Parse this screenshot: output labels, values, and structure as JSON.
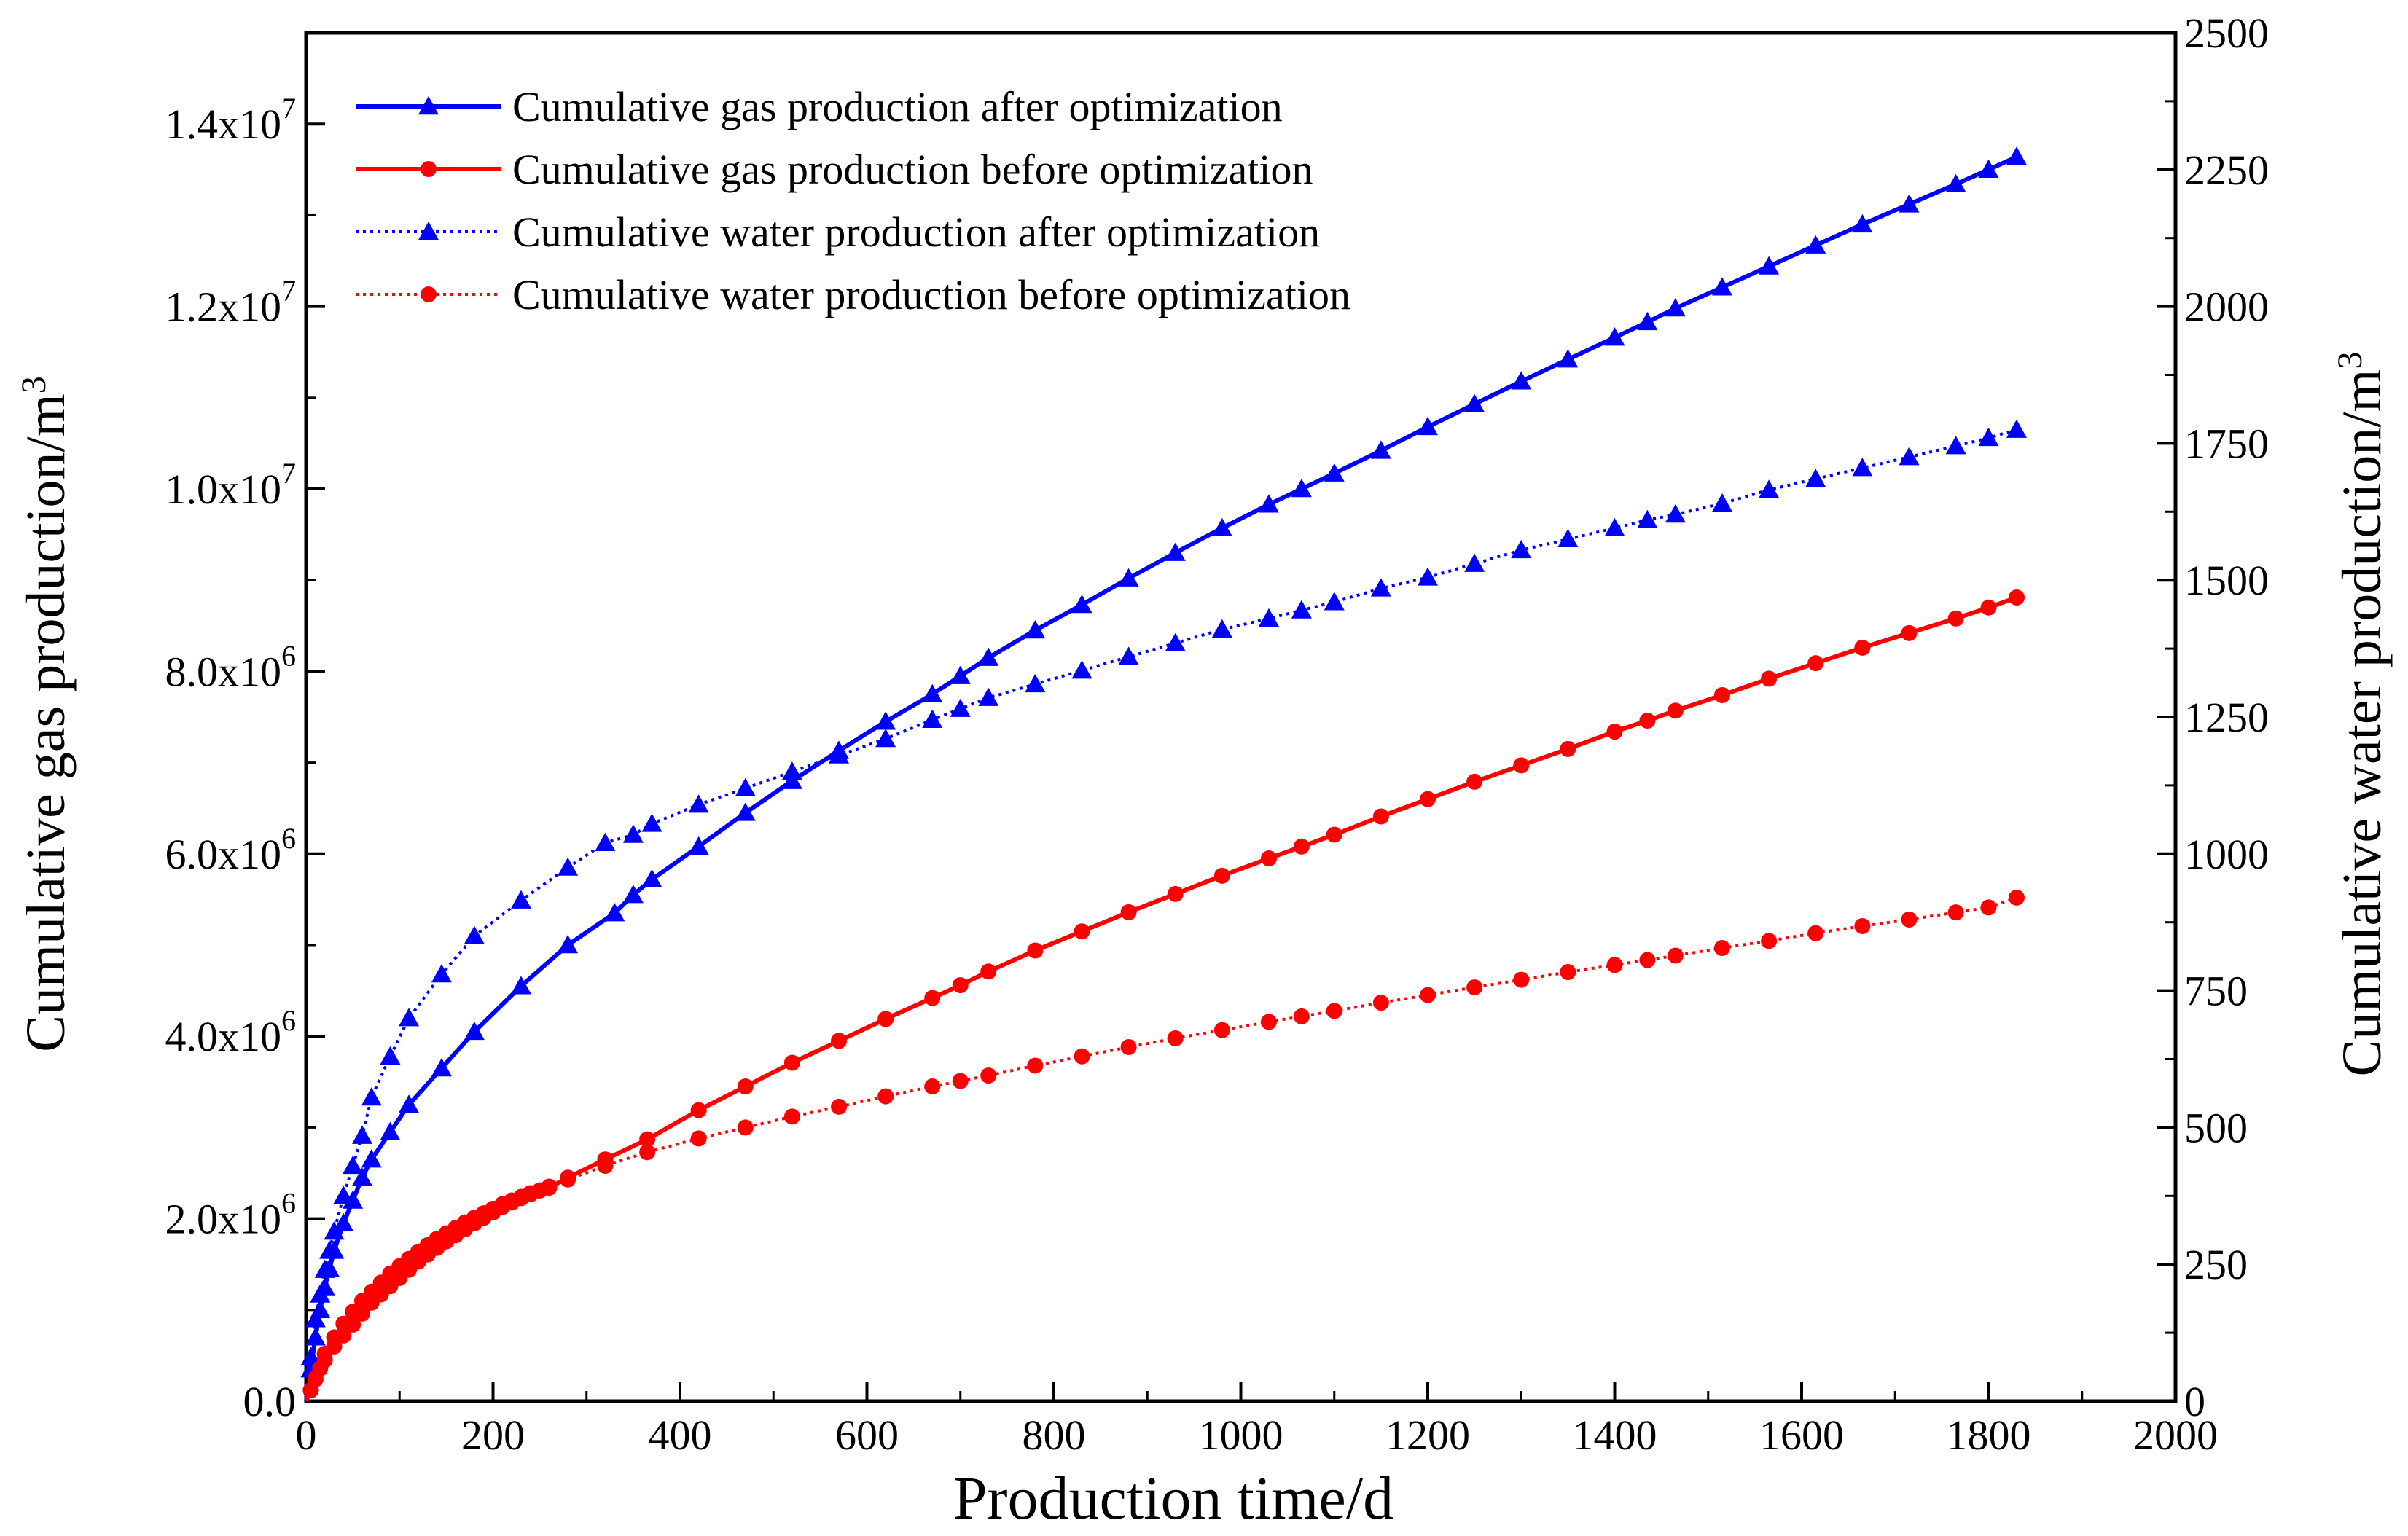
{
  "chart_data": {
    "type": "line",
    "title": "",
    "xlabel": "Production time/d",
    "ylabel_left": "Cumulative gas production/m",
    "ylabel_left_superscript": "3",
    "ylabel_right": "Cumulative water production/m",
    "ylabel_right_superscript": "3",
    "xlim": [
      0,
      2000
    ],
    "ylim_left": [
      0,
      15000000
    ],
    "ylim_right": [
      0,
      2500
    ],
    "x_ticks": [
      "0",
      "200",
      "400",
      "600",
      "800",
      "1000",
      "1200",
      "1400",
      "1600",
      "1800",
      "2000"
    ],
    "left_ticks": [
      {
        "mantissa": "0.0",
        "exp": ""
      },
      {
        "mantissa": "2.0x10",
        "exp": "6"
      },
      {
        "mantissa": "4.0x10",
        "exp": "6"
      },
      {
        "mantissa": "6.0x10",
        "exp": "6"
      },
      {
        "mantissa": "8.0x10",
        "exp": "6"
      },
      {
        "mantissa": "1.0x10",
        "exp": "7"
      },
      {
        "mantissa": "1.2x10",
        "exp": "7"
      },
      {
        "mantissa": "1.4x10",
        "exp": "7"
      }
    ],
    "right_ticks": [
      "0",
      "250",
      "500",
      "750",
      "1000",
      "1250",
      "1500",
      "1750",
      "2000",
      "2250",
      "2500"
    ],
    "grid": false,
    "legend_position": "top-left",
    "series": [
      {
        "name": "Cumulative gas production after optimization",
        "axis": "left",
        "color": "#0000ff",
        "marker": "triangle",
        "line": "solid",
        "x": [
          0,
          5,
          10,
          15,
          20,
          25,
          30,
          40,
          50,
          60,
          70,
          90,
          110,
          145,
          180,
          230,
          280,
          330,
          350,
          370,
          420,
          470,
          520,
          570,
          620,
          670,
          700,
          730,
          780,
          830,
          880,
          930,
          980,
          1030,
          1065,
          1100,
          1150,
          1200,
          1250,
          1300,
          1350,
          1400,
          1435,
          1465,
          1515,
          1565,
          1615,
          1665,
          1715,
          1765,
          1800,
          1830
        ],
        "y": [
          0,
          350000,
          700000,
          1000000,
          1250000,
          1450000,
          1650000,
          1950000,
          2200000,
          2450000,
          2650000,
          2950000,
          3250000,
          3650000,
          4050000,
          4550000,
          5000000,
          5350000,
          5550000,
          5720000,
          6080000,
          6450000,
          6800000,
          7130000,
          7450000,
          7750000,
          7950000,
          8150000,
          8450000,
          8730000,
          9020000,
          9300000,
          9570000,
          9830000,
          10000000,
          10170000,
          10420000,
          10680000,
          10930000,
          11180000,
          11420000,
          11660000,
          11830000,
          11980000,
          12210000,
          12440000,
          12670000,
          12900000,
          13120000,
          13340000,
          13500000,
          13640000
        ]
      },
      {
        "name": "Cumulative gas production before optimization",
        "axis": "left",
        "color": "#ff0000",
        "marker": "circle",
        "line": "solid",
        "x": [
          0,
          5,
          10,
          15,
          20,
          30,
          40,
          50,
          60,
          70,
          80,
          90,
          100,
          110,
          120,
          130,
          140,
          150,
          160,
          170,
          180,
          190,
          200,
          210,
          220,
          230,
          240,
          250,
          260,
          280,
          320,
          365,
          420,
          470,
          520,
          570,
          620,
          670,
          700,
          730,
          780,
          830,
          880,
          930,
          980,
          1030,
          1065,
          1100,
          1150,
          1200,
          1250,
          1300,
          1350,
          1400,
          1435,
          1465,
          1515,
          1565,
          1615,
          1665,
          1715,
          1765,
          1800,
          1830
        ],
        "y": [
          0,
          120000,
          250000,
          400000,
          520000,
          700000,
          850000,
          980000,
          1100000,
          1200000,
          1300000,
          1400000,
          1480000,
          1560000,
          1640000,
          1710000,
          1780000,
          1840000,
          1900000,
          1960000,
          2010000,
          2060000,
          2110000,
          2160000,
          2200000,
          2240000,
          2280000,
          2310000,
          2340000,
          2450000,
          2650000,
          2870000,
          3190000,
          3450000,
          3710000,
          3950000,
          4190000,
          4420000,
          4560000,
          4710000,
          4940000,
          5150000,
          5360000,
          5560000,
          5760000,
          5950000,
          6080000,
          6210000,
          6410000,
          6600000,
          6790000,
          6970000,
          7150000,
          7340000,
          7460000,
          7570000,
          7740000,
          7920000,
          8090000,
          8260000,
          8420000,
          8580000,
          8700000,
          8810000
        ]
      },
      {
        "name": "Cumulative water production after optimization",
        "axis": "right",
        "color": "#0000ff",
        "marker": "triangle",
        "line": "dotted",
        "x": [
          0,
          5,
          10,
          15,
          20,
          25,
          30,
          40,
          50,
          60,
          70,
          90,
          110,
          145,
          180,
          230,
          280,
          320,
          350,
          370,
          420,
          470,
          520,
          570,
          620,
          670,
          700,
          730,
          780,
          830,
          880,
          930,
          980,
          1030,
          1065,
          1100,
          1150,
          1200,
          1250,
          1300,
          1350,
          1400,
          1435,
          1465,
          1515,
          1565,
          1615,
          1665,
          1715,
          1765,
          1800,
          1830
        ],
        "y": [
          0,
          80,
          150,
          195,
          240,
          275,
          310,
          375,
          430,
          485,
          555,
          630,
          700,
          780,
          850,
          915,
          975,
          1020,
          1035,
          1055,
          1090,
          1120,
          1150,
          1180,
          1210,
          1245,
          1265,
          1285,
          1310,
          1335,
          1360,
          1385,
          1410,
          1430,
          1445,
          1460,
          1485,
          1505,
          1530,
          1555,
          1575,
          1595,
          1610,
          1620,
          1640,
          1665,
          1685,
          1705,
          1725,
          1745,
          1760,
          1775
        ]
      },
      {
        "name": "Cumulative water production before optimization",
        "axis": "right",
        "color": "#ff0000",
        "marker": "circle",
        "line": "dotted",
        "x": [
          0,
          5,
          10,
          15,
          20,
          30,
          40,
          50,
          60,
          70,
          80,
          90,
          100,
          110,
          120,
          130,
          140,
          150,
          160,
          170,
          180,
          190,
          200,
          210,
          220,
          230,
          240,
          250,
          260,
          280,
          320,
          365,
          420,
          470,
          520,
          570,
          620,
          670,
          700,
          730,
          780,
          830,
          880,
          930,
          980,
          1030,
          1065,
          1100,
          1150,
          1200,
          1250,
          1300,
          1350,
          1400,
          1435,
          1465,
          1515,
          1565,
          1615,
          1665,
          1715,
          1765,
          1800,
          1830
        ],
        "y": [
          0,
          20,
          40,
          60,
          75,
          100,
          120,
          140,
          160,
          180,
          195,
          210,
          225,
          240,
          255,
          268,
          280,
          292,
          303,
          314,
          325,
          335,
          345,
          355,
          363,
          371,
          378,
          385,
          392,
          405,
          430,
          455,
          480,
          500,
          520,
          538,
          557,
          575,
          585,
          595,
          613,
          630,
          647,
          663,
          678,
          693,
          703,
          713,
          728,
          742,
          756,
          770,
          784,
          797,
          806,
          814,
          828,
          841,
          855,
          868,
          880,
          893,
          902,
          920
        ]
      }
    ]
  }
}
